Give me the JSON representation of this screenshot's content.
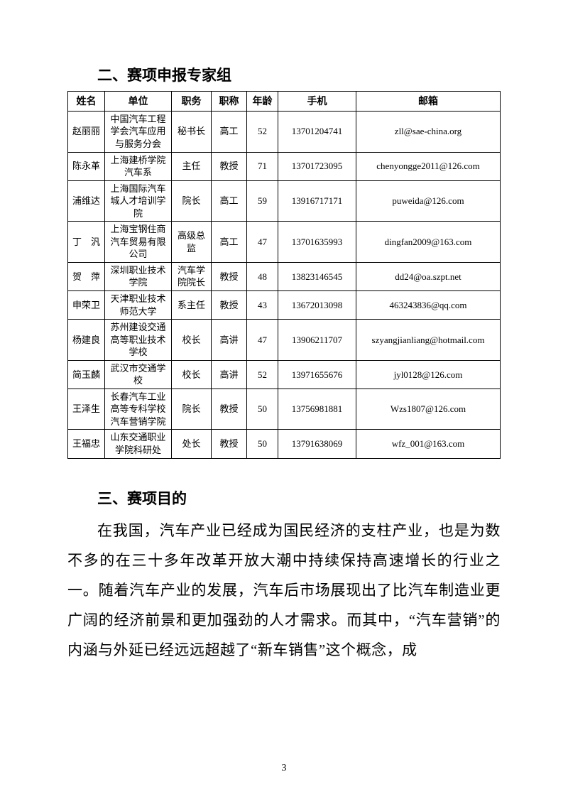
{
  "section2": {
    "heading": "二、赛项申报专家组",
    "columns": [
      "姓名",
      "单位",
      "职务",
      "职称",
      "年龄",
      "手机",
      "邮箱"
    ],
    "rows": [
      {
        "name": "赵丽丽",
        "unit": "中国汽车工程学会汽车应用与服务分会",
        "duty": "秘书长",
        "title": "高工",
        "age": "52",
        "phone": "13701204741",
        "email": "zll@sae-china.org"
      },
      {
        "name": "陈永革",
        "unit": "上海建桥学院汽车系",
        "duty": "主任",
        "title": "教授",
        "age": "71",
        "phone": "13701723095",
        "email": "chenyongge2011@126.com"
      },
      {
        "name": "浦维达",
        "unit": "上海国际汽车城人才培训学院",
        "duty": "院长",
        "title": "高工",
        "age": "59",
        "phone": "13916717171",
        "email": "puweida@126.com"
      },
      {
        "name": "丁　汎",
        "unit": "上海宝钢住商汽车贸易有限公司",
        "duty": "高级总监",
        "title": "高工",
        "age": "47",
        "phone": "13701635993",
        "email": "dingfan2009@163.com"
      },
      {
        "name": "贺　萍",
        "unit": "深圳职业技术学院",
        "duty": "汽车学院院长",
        "title": "教授",
        "age": "48",
        "phone": "13823146545",
        "email": "dd24@oa.szpt.net"
      },
      {
        "name": "申荣卫",
        "unit": "天津职业技术师范大学",
        "duty": "系主任",
        "title": "教授",
        "age": "43",
        "phone": "13672013098",
        "email": "463243836@qq.com"
      },
      {
        "name": "杨建良",
        "unit": "苏州建设交通高等职业技术学校",
        "duty": "校长",
        "title": "高讲",
        "age": "47",
        "phone": "13906211707",
        "email": "szyangjianliang@hotmail.com"
      },
      {
        "name": "简玉麟",
        "unit": "武汉市交通学校",
        "duty": "校长",
        "title": "高讲",
        "age": "52",
        "phone": "13971655676",
        "email": "jyl0128@126.com"
      },
      {
        "name": "王泽生",
        "unit": "长春汽车工业高等专科学校汽车营销学院",
        "duty": "院长",
        "title": "教授",
        "age": "50",
        "phone": "13756981881",
        "email": "Wzs1807@126.com"
      },
      {
        "name": "王福忠",
        "unit": "山东交通职业学院科研处",
        "duty": "处长",
        "title": "教授",
        "age": "50",
        "phone": "13791638069",
        "email": "wfz_001@163.com"
      }
    ]
  },
  "section3": {
    "heading": "三、赛项目的",
    "paragraph": "在我国，汽车产业已经成为国民经济的支柱产业，也是为数不多的在三十多年改革开放大潮中持续保持高速增长的行业之一。随着汽车产业的发展，汽车后市场展现出了比汽车制造业更广阔的经济前景和更加强劲的人才需求。而其中，“汽车营销”的内涵与外延已经远远超越了“新车销售”这个概念，成"
  },
  "pageNumber": "3",
  "colors": {
    "text": "#000000",
    "background": "#ffffff",
    "border": "#000000"
  }
}
